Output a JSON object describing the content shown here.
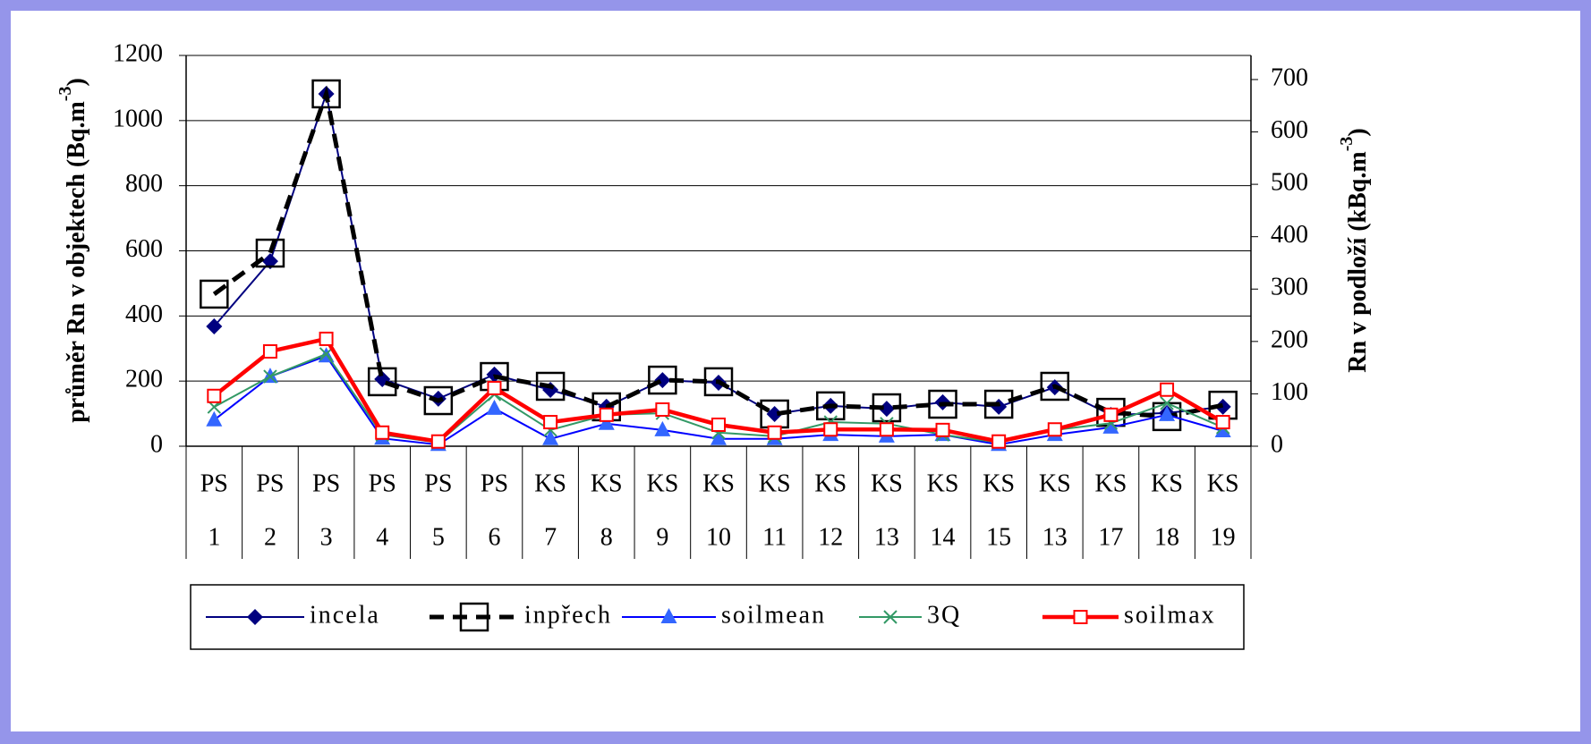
{
  "chart_data": {
    "type": "line",
    "ylabel": {
      "text": "průměr Rn v objektech (Bq.m",
      "sup": "-3",
      "end": ")"
    },
    "y2label": {
      "text": "Rn v podloží (kBq.m",
      "sup": "-3",
      "end": ")"
    },
    "categories": [
      "PS",
      "PS",
      "PS",
      "PS",
      "PS",
      "PS",
      "KS",
      "KS",
      "KS",
      "KS",
      "KS",
      "KS",
      "KS",
      "KS",
      "KS",
      "KS",
      "KS",
      "KS",
      "KS"
    ],
    "category_numbers": [
      "1",
      "2",
      "3",
      "4",
      "5",
      "6",
      "7",
      "8",
      "9",
      "10",
      "11",
      "12",
      "13",
      "14",
      "15",
      "13",
      "17",
      "18",
      "19"
    ],
    "ylim": [
      0,
      1200
    ],
    "yticks": [
      0,
      200,
      400,
      600,
      800,
      1000,
      1200
    ],
    "y2lim": [
      0,
      746
    ],
    "y2ticks": [
      0,
      100,
      200,
      300,
      400,
      500,
      600,
      700
    ],
    "grid": true,
    "series": [
      {
        "name": "incela",
        "color": "#000080",
        "marker": "diamond",
        "axis": "y",
        "values": [
          368,
          568,
          1082,
          206,
          146,
          220,
          173,
          121,
          203,
          195,
          99,
          124,
          115,
          135,
          121,
          181,
          96,
          102,
          121
        ]
      },
      {
        "name": "inpřech",
        "color": "#000000",
        "marker": "square-big",
        "dashed": true,
        "axis": "y",
        "values": [
          467,
          593,
          1082,
          198,
          140,
          214,
          184,
          121,
          203,
          198,
          99,
          124,
          118,
          129,
          129,
          184,
          104,
          91,
          126
        ]
      },
      {
        "name": "soilmean",
        "color": "#0000ff",
        "marker": "triangle",
        "axis": "y2",
        "values": [
          50,
          133,
          172,
          15,
          3,
          72,
          14,
          43,
          31,
          14,
          14,
          22,
          19,
          22,
          3,
          22,
          36,
          60,
          29
        ]
      },
      {
        "name": "3Q",
        "color": "#339966",
        "marker": "x",
        "axis": "y2",
        "values": [
          75,
          133,
          176,
          22,
          7,
          99,
          31,
          60,
          63,
          26,
          19,
          46,
          43,
          22,
          7,
          31,
          44,
          82,
          36
        ]
      },
      {
        "name": "soilmax",
        "color": "#ff0000",
        "marker": "square",
        "axis": "y2",
        "values": [
          96,
          181,
          205,
          26,
          9,
          111,
          46,
          60,
          70,
          41,
          26,
          32,
          32,
          31,
          9,
          32,
          60,
          108,
          46
        ]
      }
    ]
  }
}
